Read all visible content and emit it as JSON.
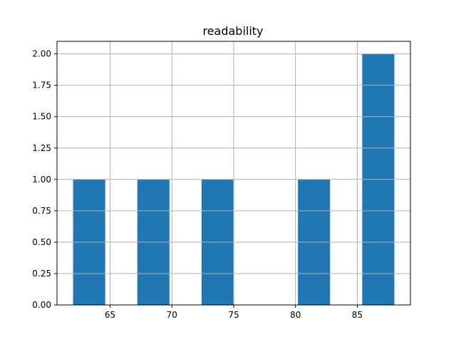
{
  "chart_data": {
    "type": "bar",
    "title": "readability",
    "xlabel": "",
    "ylabel": "",
    "bins": [
      {
        "start": 62.0,
        "end": 64.6,
        "count": 1
      },
      {
        "start": 64.6,
        "end": 67.2,
        "count": 0
      },
      {
        "start": 67.2,
        "end": 69.8,
        "count": 1
      },
      {
        "start": 69.8,
        "end": 72.4,
        "count": 0
      },
      {
        "start": 72.4,
        "end": 75.0,
        "count": 1
      },
      {
        "start": 75.0,
        "end": 77.6,
        "count": 0
      },
      {
        "start": 77.6,
        "end": 80.2,
        "count": 0
      },
      {
        "start": 80.2,
        "end": 82.8,
        "count": 1
      },
      {
        "start": 82.8,
        "end": 85.4,
        "count": 0
      },
      {
        "start": 85.4,
        "end": 88.0,
        "count": 2
      }
    ],
    "xlim": [
      60.7,
      89.3
    ],
    "ylim": [
      0,
      2.1
    ],
    "xticks": [
      65,
      70,
      75,
      80,
      85
    ],
    "xtick_labels": [
      "65",
      "70",
      "75",
      "80",
      "85"
    ],
    "yticks": [
      0,
      0.25,
      0.5,
      0.75,
      1.0,
      1.25,
      1.5,
      1.75,
      2.0
    ],
    "ytick_labels": [
      "0.00",
      "0.25",
      "0.50",
      "0.75",
      "1.00",
      "1.25",
      "1.50",
      "1.75",
      "2.00"
    ],
    "grid": true,
    "bar_color": "#1f77b4",
    "grid_color": "#b0b0b0"
  }
}
